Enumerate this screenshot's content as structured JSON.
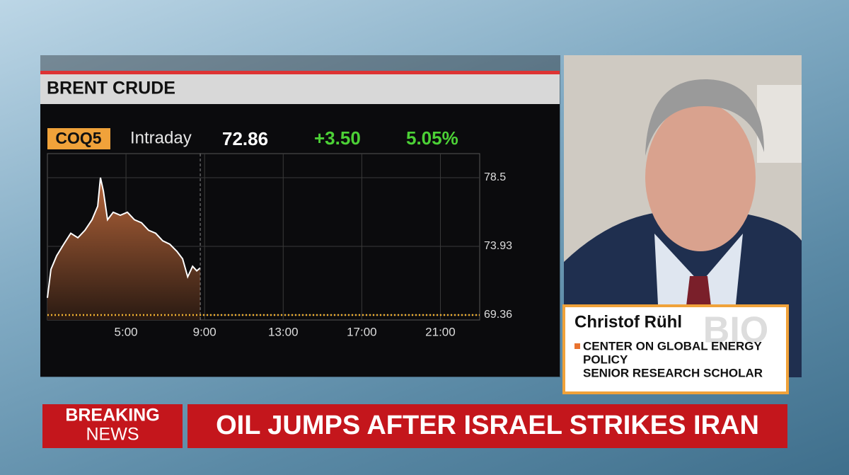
{
  "chart_data": {
    "type": "area",
    "title": "BRENT CRUDE",
    "symbol": "COQ5",
    "period": "Intraday",
    "last": "72.86",
    "change": "+3.50",
    "change_pct": "5.05%",
    "x": [
      1.0,
      1.18,
      1.47,
      1.83,
      2.19,
      2.55,
      2.91,
      3.27,
      3.56,
      3.7,
      3.85,
      4.06,
      4.35,
      4.71,
      5.07,
      5.43,
      5.79,
      6.15,
      6.51,
      6.87,
      7.23,
      7.59,
      7.88,
      8.14,
      8.39,
      8.6,
      8.78
    ],
    "values": [
      70.5,
      72.4,
      73.3,
      74.07,
      74.8,
      74.5,
      75.0,
      75.7,
      76.6,
      78.5,
      77.6,
      75.7,
      76.2,
      76.0,
      76.2,
      75.7,
      75.5,
      75.0,
      74.8,
      74.3,
      74.07,
      73.6,
      73.1,
      71.9,
      72.6,
      72.3,
      72.5
    ],
    "color": "#ffffff",
    "fill_color": "#b5653a",
    "xlim": [
      1,
      23
    ],
    "xticks": [
      {
        "value": 5,
        "label": "5:00"
      },
      {
        "value": 9,
        "label": "9:00"
      },
      {
        "value": 13,
        "label": "13:00"
      },
      {
        "value": 17,
        "label": "17:00"
      },
      {
        "value": 21,
        "label": "21:00"
      }
    ],
    "ylim": [
      69.03,
      80.1
    ],
    "yticks": [
      69.36,
      73.93,
      78.5
    ],
    "reference_line": 69.36,
    "grid": true
  },
  "guest": {
    "name": "Christof Rühl",
    "watermark": "BIO",
    "lines": [
      "CENTER ON GLOBAL ENERGY",
      "POLICY",
      "SENIOR RESEARCH SCHOLAR"
    ]
  },
  "ticker": {
    "label": [
      "BREAKING",
      "NEWS"
    ],
    "headline": "OIL JUMPS AFTER ISRAEL STRIKES IRAN"
  }
}
